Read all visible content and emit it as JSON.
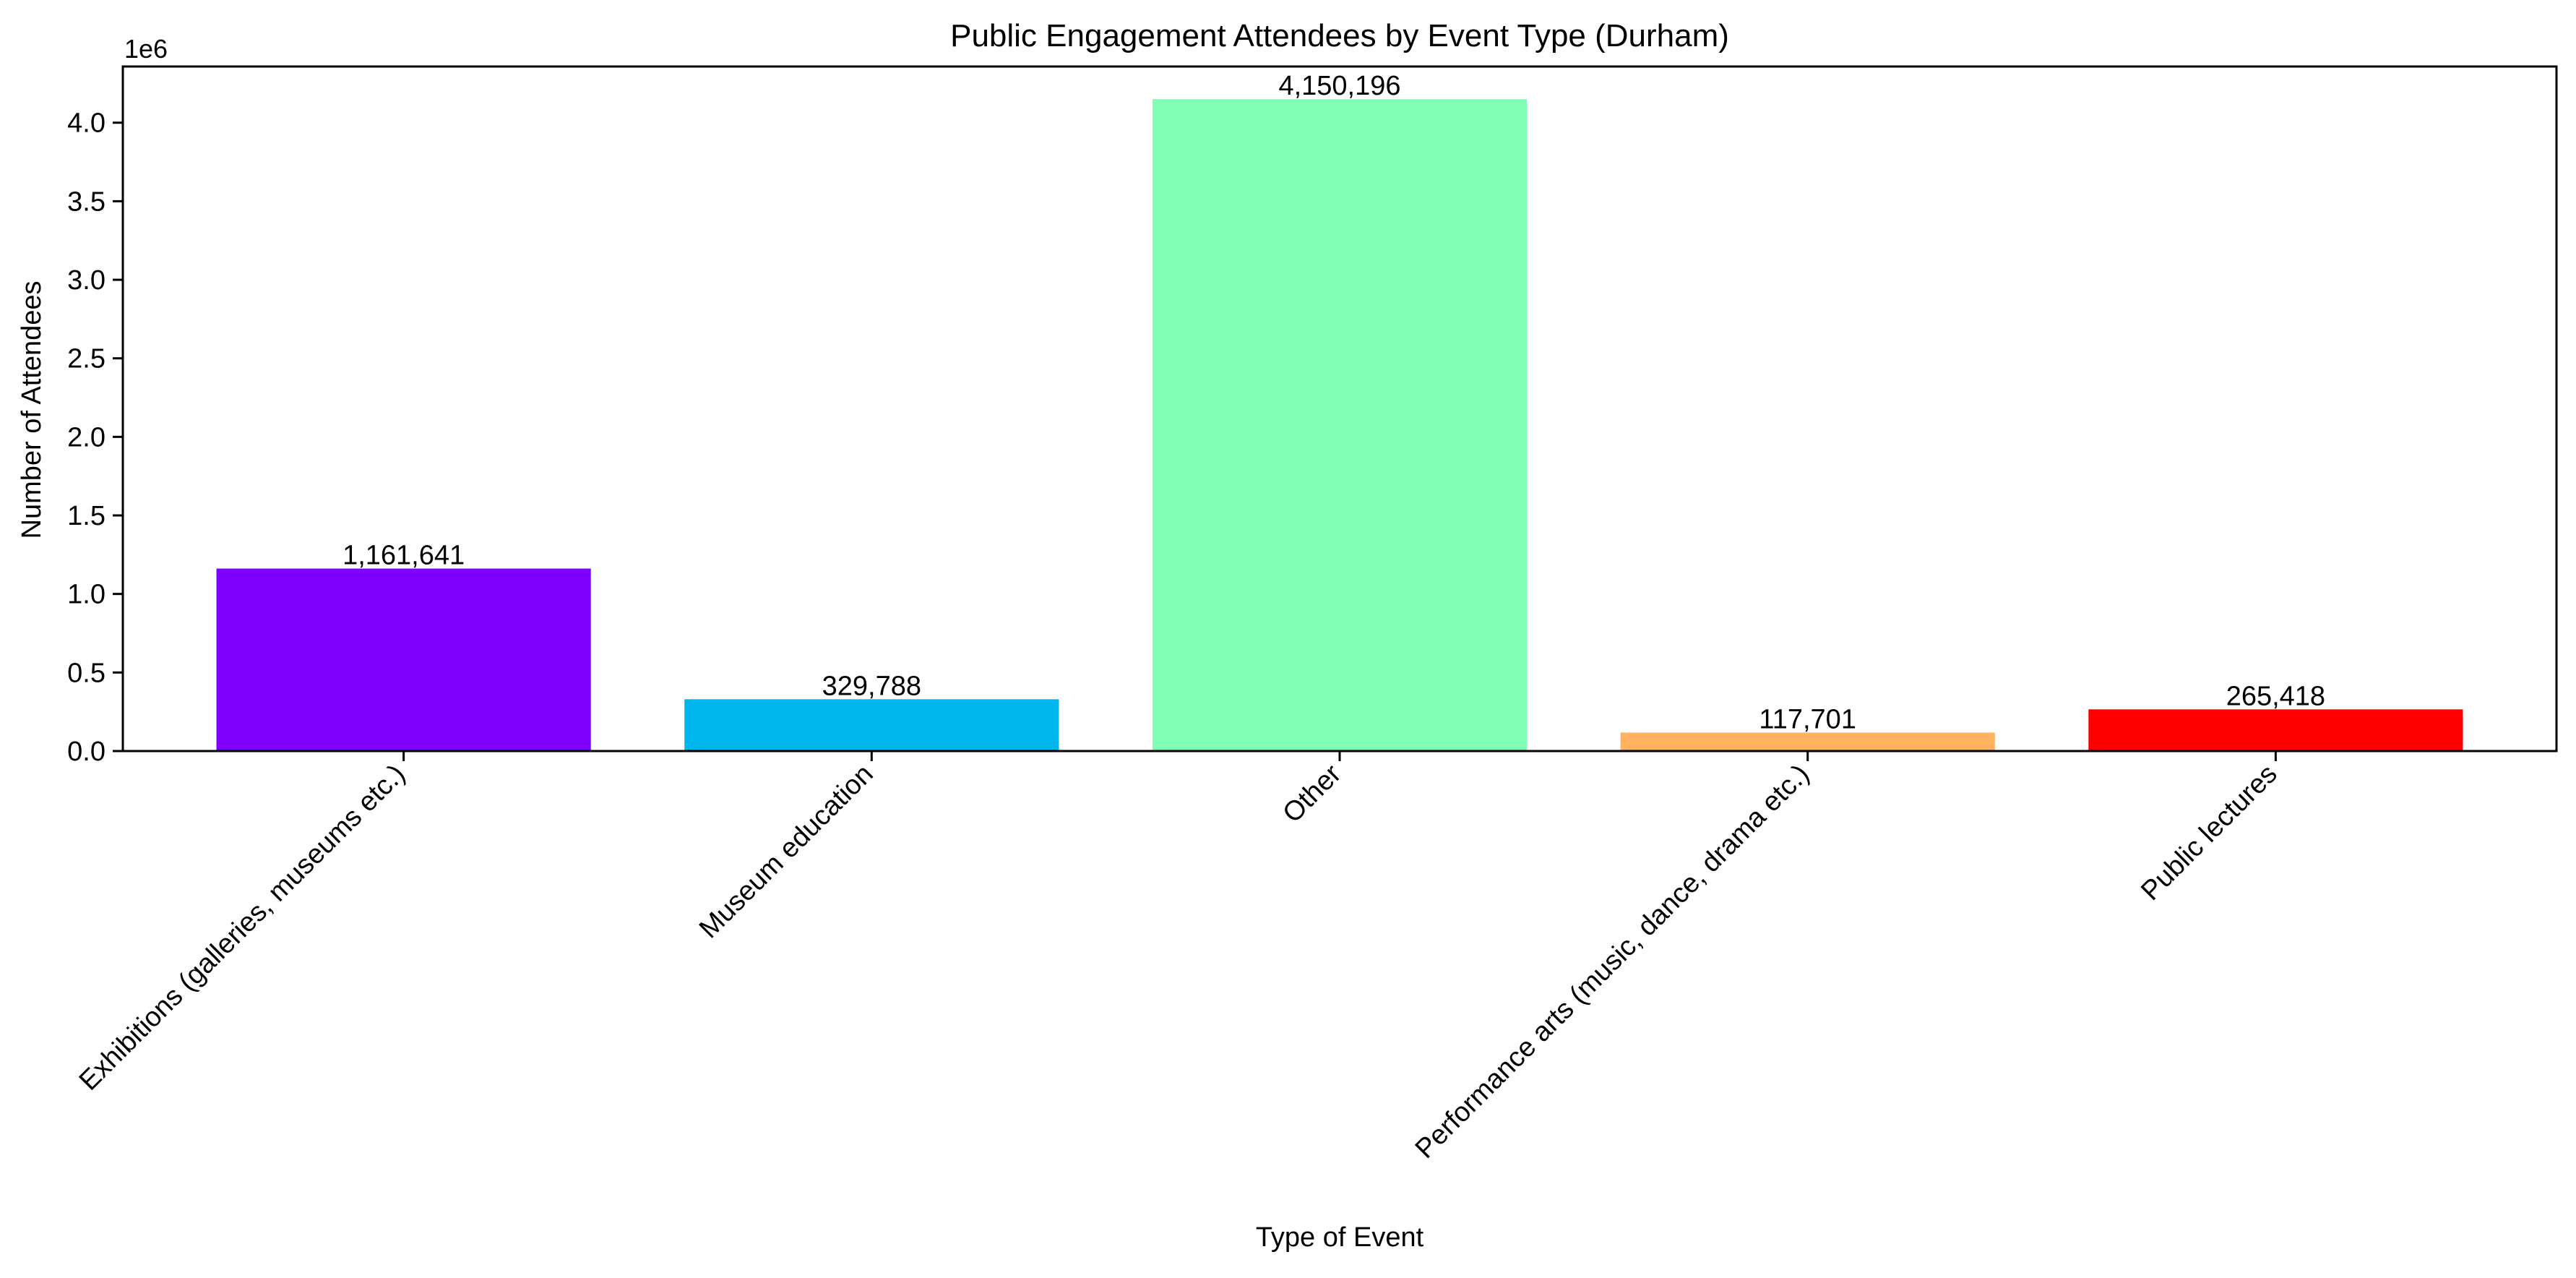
{
  "chart_data": {
    "type": "bar",
    "title": "Public Engagement Attendees by Event Type (Durham)",
    "xlabel": "Type of Event",
    "ylabel": "Number of Attendees",
    "y_scale_label": "1e6",
    "categories": [
      "Exhibitions (galleries, museums etc.)",
      "Museum education",
      "Other",
      "Performance arts (music, dance, drama etc.)",
      "Public lectures"
    ],
    "values": [
      1161641,
      329788,
      4150196,
      117701,
      265418
    ],
    "value_labels": [
      "1,161,641",
      "329,788",
      "4,150,196",
      "117,701",
      "265,418"
    ],
    "colors": [
      "#8000ff",
      "#00b5eb",
      "#80ffb4",
      "#ffb360",
      "#ff0000"
    ],
    "ylim": [
      0,
      4357706
    ],
    "yticks": [
      0,
      500000,
      1000000,
      1500000,
      2000000,
      2500000,
      3000000,
      3500000,
      4000000
    ],
    "ytick_labels": [
      "0.0",
      "0.5",
      "1.0",
      "1.5",
      "2.0",
      "2.5",
      "3.0",
      "3.5",
      "4.0"
    ],
    "grid": false,
    "legend": "none"
  }
}
